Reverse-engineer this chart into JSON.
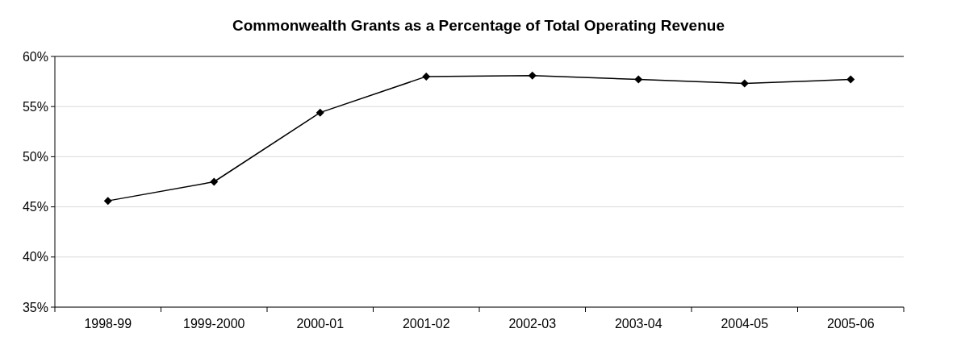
{
  "chart_data": {
    "type": "line",
    "title": "Commonwealth Grants as a Percentage of Total Operating Revenue",
    "categories": [
      "1998-99",
      "1999-2000",
      "2000-01",
      "2001-02",
      "2002-03",
      "2003-04",
      "2004-05",
      "2005-06"
    ],
    "series": [
      {
        "color": "#000000",
        "values": [
          45.6,
          47.5,
          54.4,
          58.0,
          58.1,
          57.7,
          57.3,
          57.7
        ]
      }
    ],
    "ylim": [
      35,
      60
    ],
    "yticks": [
      {
        "value": 35,
        "label": "35%"
      },
      {
        "value": 40,
        "label": "40%"
      },
      {
        "value": 45,
        "label": "45%"
      },
      {
        "value": 50,
        "label": "50%"
      },
      {
        "value": 55,
        "label": "55%"
      },
      {
        "value": 60,
        "label": "60%"
      }
    ],
    "grid": "y",
    "marker": "diamond",
    "line_style": "solid"
  }
}
